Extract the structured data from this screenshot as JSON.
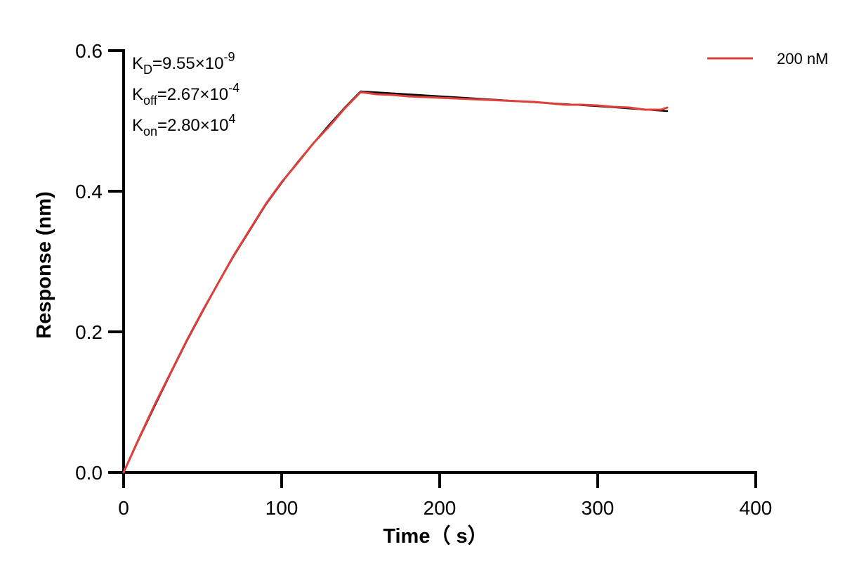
{
  "chart_data": {
    "type": "line",
    "xlabel": "Time（ s）",
    "ylabel": "Response (nm)",
    "xlim": [
      0,
      400
    ],
    "ylim": [
      0,
      0.6
    ],
    "x_ticks": [
      0,
      100,
      200,
      300,
      400
    ],
    "y_ticks": [
      0.0,
      0.2,
      0.4,
      0.6
    ],
    "x_tick_labels": [
      "0",
      "100",
      "200",
      "300",
      "400"
    ],
    "y_tick_labels": [
      "0.0",
      "0.2",
      "0.4",
      "0.6"
    ],
    "grid": false,
    "legend_position": "top-right",
    "annotations": [
      {
        "id": "kd",
        "base": "K",
        "sub": "D",
        "mid": "=9.55×10",
        "sup": "-9"
      },
      {
        "id": "koff",
        "base": "K",
        "sub": "off",
        "mid": "=2.67×10",
        "sup": "-4"
      },
      {
        "id": "kon",
        "base": "K",
        "sub": "on",
        "mid": "=2.80×10",
        "sup": "4"
      }
    ],
    "series": [
      {
        "name": "200 nM",
        "color": "#e0403c",
        "x": [
          0,
          10,
          20,
          30,
          40,
          50,
          60,
          70,
          80,
          90,
          100,
          110,
          120,
          130,
          140,
          150,
          160,
          170,
          180,
          190,
          200,
          210,
          220,
          230,
          240,
          250,
          260,
          270,
          280,
          290,
          300,
          310,
          320,
          330,
          340,
          344
        ],
        "y": [
          0.0,
          0.05,
          0.098,
          0.143,
          0.188,
          0.23,
          0.27,
          0.31,
          0.346,
          0.382,
          0.413,
          0.44,
          0.468,
          0.492,
          0.518,
          0.541,
          0.538,
          0.537,
          0.535,
          0.534,
          0.533,
          0.532,
          0.531,
          0.53,
          0.529,
          0.528,
          0.527,
          0.525,
          0.523,
          0.523,
          0.522,
          0.52,
          0.519,
          0.516,
          0.516,
          0.519
        ]
      },
      {
        "color": "#000000",
        "x": [
          0,
          10,
          20,
          30,
          40,
          50,
          60,
          70,
          80,
          90,
          100,
          110,
          120,
          130,
          140,
          150,
          200,
          250,
          300,
          344
        ],
        "y": [
          0.0,
          0.049,
          0.096,
          0.142,
          0.187,
          0.229,
          0.27,
          0.309,
          0.345,
          0.381,
          0.412,
          0.441,
          0.468,
          0.494,
          0.519,
          0.542,
          0.535,
          0.528,
          0.521,
          0.514
        ]
      }
    ]
  }
}
